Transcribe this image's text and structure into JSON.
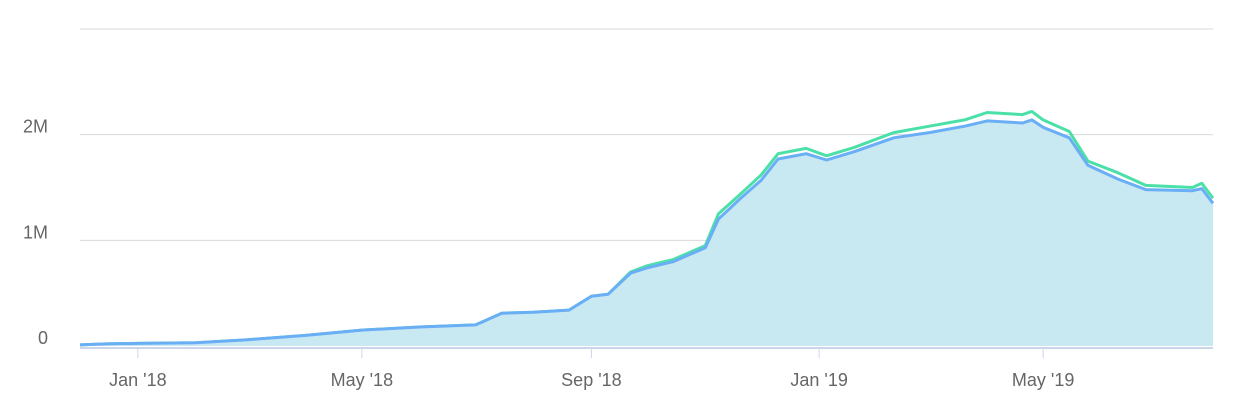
{
  "chart_data": {
    "type": "area",
    "title": "",
    "xlabel": "",
    "ylabel": "",
    "ylim": [
      0,
      3000000
    ],
    "y_ticks": [
      {
        "value": 0,
        "label": "0"
      },
      {
        "value": 1000000,
        "label": "1M"
      },
      {
        "value": 2000000,
        "label": "2M"
      }
    ],
    "x_range": [
      "2017-12-01",
      "2019-07-31"
    ],
    "x_ticks": [
      {
        "date": "2018-01-01",
        "label": "Jan '18"
      },
      {
        "date": "2018-05-01",
        "label": "May '18"
      },
      {
        "date": "2018-09-01",
        "label": "Sep '18"
      },
      {
        "date": "2019-01-01",
        "label": "Jan '19"
      },
      {
        "date": "2019-05-01",
        "label": "May '19"
      }
    ],
    "grid": true,
    "legend": "none",
    "series": [
      {
        "color": "#4be0a8",
        "style": "line",
        "points": [
          [
            "2017-12-01",
            10000
          ],
          [
            "2017-12-15",
            20000
          ],
          [
            "2018-01-01",
            25000
          ],
          [
            "2018-02-01",
            30000
          ],
          [
            "2018-03-01",
            60000
          ],
          [
            "2018-04-01",
            100000
          ],
          [
            "2018-05-01",
            150000
          ],
          [
            "2018-06-01",
            180000
          ],
          [
            "2018-07-01",
            200000
          ],
          [
            "2018-07-15",
            310000
          ],
          [
            "2018-08-01",
            320000
          ],
          [
            "2018-08-20",
            340000
          ],
          [
            "2018-09-01",
            470000
          ],
          [
            "2018-09-10",
            490000
          ],
          [
            "2018-09-22",
            700000
          ],
          [
            "2018-10-01",
            760000
          ],
          [
            "2018-10-15",
            820000
          ],
          [
            "2018-11-01",
            950000
          ],
          [
            "2018-11-08",
            1250000
          ],
          [
            "2018-11-20",
            1440000
          ],
          [
            "2018-12-01",
            1620000
          ],
          [
            "2018-12-10",
            1820000
          ],
          [
            "2018-12-25",
            1870000
          ],
          [
            "2019-01-05",
            1800000
          ],
          [
            "2019-01-20",
            1880000
          ],
          [
            "2019-02-10",
            2020000
          ],
          [
            "2019-03-01",
            2080000
          ],
          [
            "2019-03-20",
            2140000
          ],
          [
            "2019-04-01",
            2210000
          ],
          [
            "2019-04-20",
            2190000
          ],
          [
            "2019-04-25",
            2220000
          ],
          [
            "2019-05-01",
            2140000
          ],
          [
            "2019-05-15",
            2030000
          ],
          [
            "2019-05-25",
            1750000
          ],
          [
            "2019-06-10",
            1640000
          ],
          [
            "2019-06-25",
            1520000
          ],
          [
            "2019-07-20",
            1500000
          ],
          [
            "2019-07-25",
            1540000
          ],
          [
            "2019-07-31",
            1400000
          ]
        ]
      },
      {
        "color": "#6aaef5",
        "style": "area",
        "fill": "#c8e9f2",
        "points": [
          [
            "2017-12-01",
            10000
          ],
          [
            "2017-12-15",
            20000
          ],
          [
            "2018-01-01",
            25000
          ],
          [
            "2018-02-01",
            30000
          ],
          [
            "2018-03-01",
            60000
          ],
          [
            "2018-04-01",
            100000
          ],
          [
            "2018-05-01",
            150000
          ],
          [
            "2018-06-01",
            180000
          ],
          [
            "2018-07-01",
            200000
          ],
          [
            "2018-07-15",
            310000
          ],
          [
            "2018-08-01",
            320000
          ],
          [
            "2018-08-20",
            340000
          ],
          [
            "2018-09-01",
            470000
          ],
          [
            "2018-09-10",
            490000
          ],
          [
            "2018-09-22",
            690000
          ],
          [
            "2018-10-01",
            740000
          ],
          [
            "2018-10-15",
            800000
          ],
          [
            "2018-11-01",
            930000
          ],
          [
            "2018-11-08",
            1200000
          ],
          [
            "2018-11-20",
            1400000
          ],
          [
            "2018-12-01",
            1570000
          ],
          [
            "2018-12-10",
            1770000
          ],
          [
            "2018-12-25",
            1820000
          ],
          [
            "2019-01-05",
            1760000
          ],
          [
            "2019-01-20",
            1840000
          ],
          [
            "2019-02-10",
            1970000
          ],
          [
            "2019-03-01",
            2020000
          ],
          [
            "2019-03-20",
            2080000
          ],
          [
            "2019-04-01",
            2130000
          ],
          [
            "2019-04-20",
            2110000
          ],
          [
            "2019-04-25",
            2140000
          ],
          [
            "2019-05-01",
            2070000
          ],
          [
            "2019-05-15",
            1970000
          ],
          [
            "2019-05-25",
            1710000
          ],
          [
            "2019-06-10",
            1580000
          ],
          [
            "2019-06-25",
            1480000
          ],
          [
            "2019-07-20",
            1470000
          ],
          [
            "2019-07-25",
            1490000
          ],
          [
            "2019-07-31",
            1350000
          ]
        ]
      }
    ],
    "colors": {
      "grid": "#d9d9d9",
      "axis": "#ccd6eb",
      "tick_text": "#666666"
    }
  }
}
